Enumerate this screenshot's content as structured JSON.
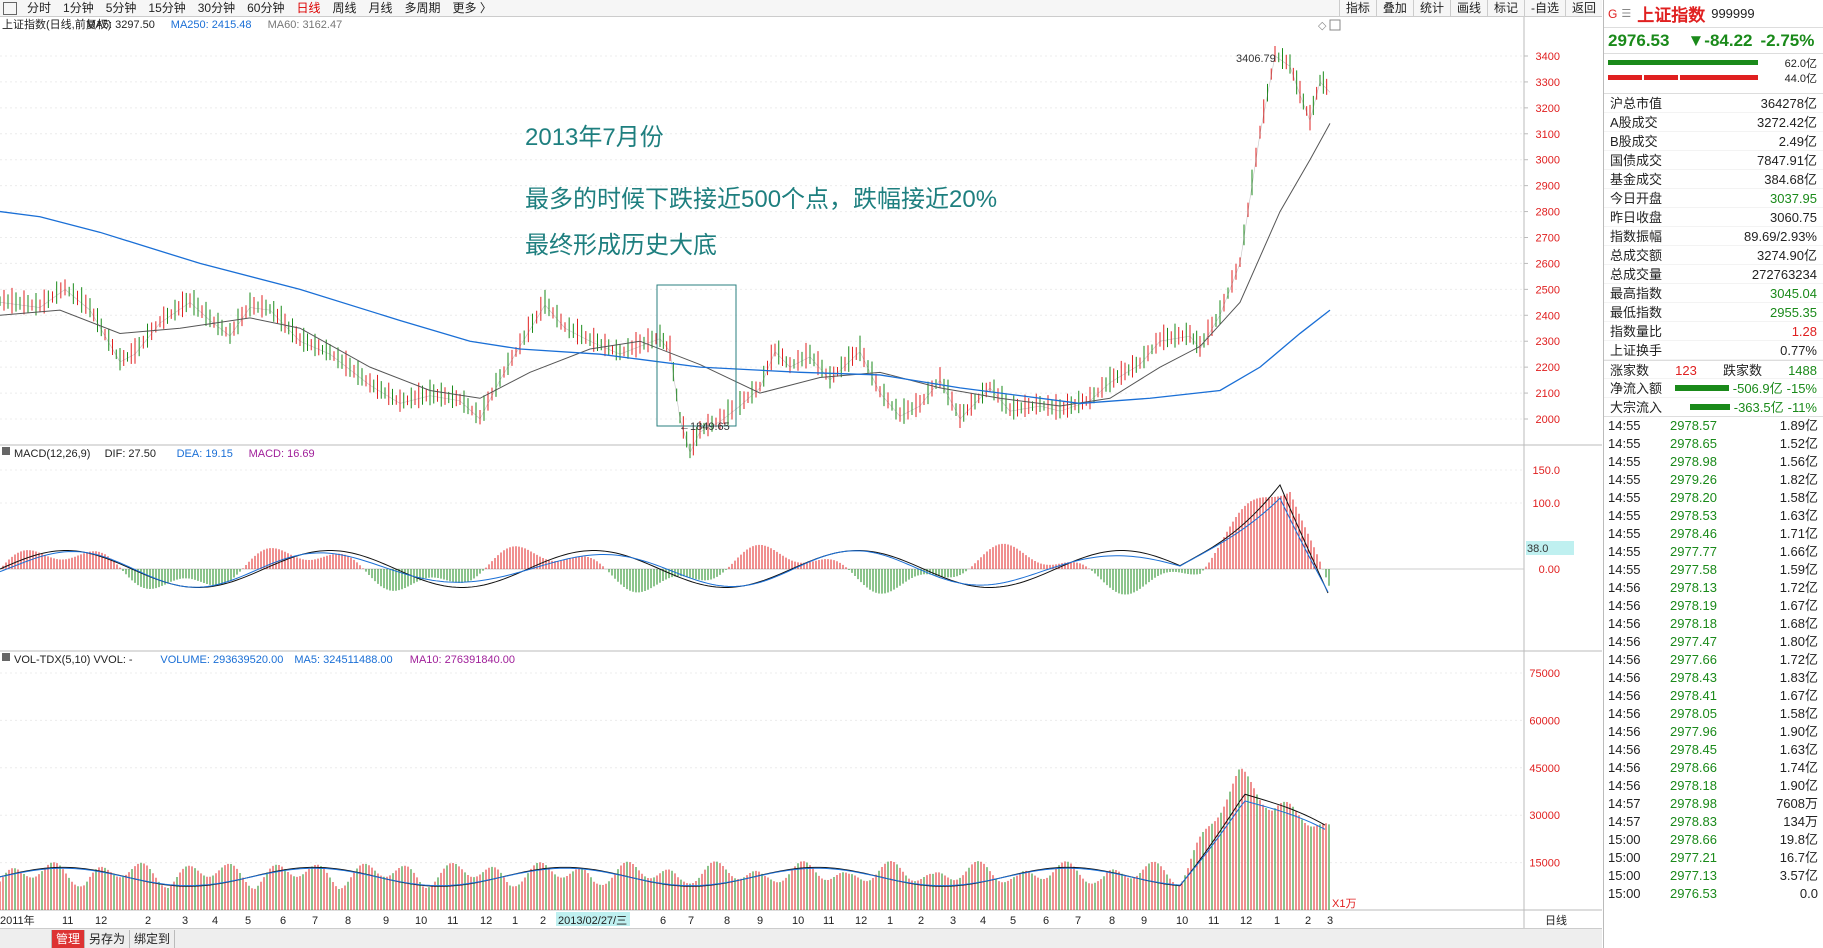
{
  "toolbar": {
    "tabs": [
      "分时",
      "1分钟",
      "5分钟",
      "15分钟",
      "30分钟",
      "60分钟",
      "日线",
      "周线",
      "月线",
      "多周期",
      "更多 〉"
    ],
    "active_tab": "日线",
    "right_buttons": [
      "指标",
      "叠加",
      "统计",
      "画线",
      "标记",
      "-自选",
      "返回"
    ]
  },
  "chart": {
    "main_legend_title": "上证指数(日线,前复权)",
    "ma5": "MA5: 3297.50",
    "ma250": "MA250: 2415.48",
    "ma60": "MA60: 3162.47",
    "annotation_title": "2013年7月份",
    "annotation_line1": "最多的时候下跌接近500个点，跌幅接近20%",
    "annotation_line2": "最终形成历史大底",
    "high_label": "3406.79",
    "low_label": "←1849.65",
    "price_axis": [
      "3400",
      "3300",
      "3200",
      "3100",
      "3000",
      "2900",
      "2800",
      "2700",
      "2600",
      "2500",
      "2400",
      "2300",
      "2200",
      "2100",
      "2000"
    ],
    "macd_legend_title": "MACD(12,26,9)",
    "dif": "DIF: 27.50",
    "dea": "DEA: 19.15",
    "macd": "MACD: 16.69",
    "macd_axis": [
      "150.0",
      "100.0",
      "0.00"
    ],
    "macd_marker": "38.0",
    "vol_legend_title": "VOL-TDX(5,10)  VVOL: -",
    "volume": "VOLUME: 293639520.00",
    "vol_ma5": "MA5: 324511488.00",
    "vol_ma10": "MA10: 276391840.00",
    "vol_axis": [
      "75000",
      "60000",
      "45000",
      "30000",
      "15000"
    ],
    "vol_unit": "X1万",
    "x_axis": [
      "2011年",
      "11",
      "12",
      "2",
      "3",
      "4",
      "5",
      "6",
      "7",
      "8",
      "9",
      "10",
      "11",
      "12",
      "1",
      "2",
      "2013/02/27/三",
      "6",
      "7",
      "8",
      "9",
      "10",
      "11",
      "12",
      "1",
      "2",
      "3",
      "4",
      "5",
      "6",
      "7",
      "8",
      "9",
      "10",
      "11",
      "12",
      "1",
      "2",
      "3"
    ],
    "x_axis_right": "日线"
  },
  "bottom_bar": {
    "buttons": [
      "管理",
      "另存为",
      "绑定到"
    ]
  },
  "quote": {
    "name": "上证指数",
    "code": "999999",
    "price": "2976.53",
    "change": "▼-84.22",
    "change_pct": "-2.75%",
    "bar1": "62.0亿",
    "bar2": "44.0亿",
    "stats": [
      {
        "label": "沪总市值",
        "value": "364278亿",
        "color": ""
      },
      {
        "label": "A股成交",
        "value": "3272.42亿",
        "color": ""
      },
      {
        "label": "B股成交",
        "value": "2.49亿",
        "color": ""
      },
      {
        "label": "国债成交",
        "value": "7847.91亿",
        "color": ""
      },
      {
        "label": "基金成交",
        "value": "384.68亿",
        "color": ""
      },
      {
        "label": "今日开盘",
        "value": "3037.95",
        "color": "green"
      },
      {
        "label": "昨日收盘",
        "value": "3060.75",
        "color": ""
      },
      {
        "label": "指数振幅",
        "value": "89.69/2.93%",
        "color": ""
      },
      {
        "label": "总成交额",
        "value": "3274.90亿",
        "color": ""
      },
      {
        "label": "总成交量",
        "value": "272763234",
        "color": ""
      },
      {
        "label": "最高指数",
        "value": "3045.04",
        "color": "green"
      },
      {
        "label": "最低指数",
        "value": "2955.35",
        "color": "green"
      },
      {
        "label": "指数量比",
        "value": "1.28",
        "color": "red"
      },
      {
        "label": "上证换手",
        "value": "0.77%",
        "color": ""
      }
    ],
    "up_label": "涨家数",
    "up_count": "123",
    "down_label": "跌家数",
    "down_count": "1488",
    "net_inflow_label": "净流入额",
    "net_inflow": "-506.9亿",
    "net_inflow_pct": "-15%",
    "block_inflow_label": "大宗流入",
    "block_inflow": "-363.5亿",
    "block_inflow_pct": "-11%"
  },
  "ticks": [
    {
      "t": "14:55",
      "p": "2978.57",
      "v": "1.89亿"
    },
    {
      "t": "14:55",
      "p": "2978.65",
      "v": "1.52亿"
    },
    {
      "t": "14:55",
      "p": "2978.98",
      "v": "1.56亿"
    },
    {
      "t": "14:55",
      "p": "2979.26",
      "v": "1.82亿"
    },
    {
      "t": "14:55",
      "p": "2978.20",
      "v": "1.58亿"
    },
    {
      "t": "14:55",
      "p": "2978.53",
      "v": "1.63亿"
    },
    {
      "t": "14:55",
      "p": "2978.46",
      "v": "1.71亿"
    },
    {
      "t": "14:55",
      "p": "2977.77",
      "v": "1.66亿"
    },
    {
      "t": "14:55",
      "p": "2977.58",
      "v": "1.59亿"
    },
    {
      "t": "14:56",
      "p": "2978.13",
      "v": "1.72亿"
    },
    {
      "t": "14:56",
      "p": "2978.19",
      "v": "1.67亿"
    },
    {
      "t": "14:56",
      "p": "2978.18",
      "v": "1.68亿"
    },
    {
      "t": "14:56",
      "p": "2977.47",
      "v": "1.80亿"
    },
    {
      "t": "14:56",
      "p": "2977.66",
      "v": "1.72亿"
    },
    {
      "t": "14:56",
      "p": "2978.43",
      "v": "1.83亿"
    },
    {
      "t": "14:56",
      "p": "2978.41",
      "v": "1.67亿"
    },
    {
      "t": "14:56",
      "p": "2978.05",
      "v": "1.58亿"
    },
    {
      "t": "14:56",
      "p": "2977.96",
      "v": "1.90亿"
    },
    {
      "t": "14:56",
      "p": "2978.45",
      "v": "1.63亿"
    },
    {
      "t": "14:56",
      "p": "2978.66",
      "v": "1.74亿"
    },
    {
      "t": "14:56",
      "p": "2978.18",
      "v": "1.90亿"
    },
    {
      "t": "14:57",
      "p": "2978.98",
      "v": "7608万"
    },
    {
      "t": "14:57",
      "p": "2978.83",
      "v": "134万"
    },
    {
      "t": "15:00",
      "p": "2978.66",
      "v": "19.8亿"
    },
    {
      "t": "15:00",
      "p": "2977.21",
      "v": "16.7亿"
    },
    {
      "t": "15:00",
      "p": "2977.13",
      "v": "3.57亿"
    },
    {
      "t": "15:00",
      "p": "2976.53",
      "v": "0.0"
    }
  ],
  "colors": {
    "up": "#e02020",
    "down": "#1a8a1a",
    "ma250": "#1a6fd6",
    "ma60": "#555555",
    "annotation": "#1e7f7f"
  }
}
